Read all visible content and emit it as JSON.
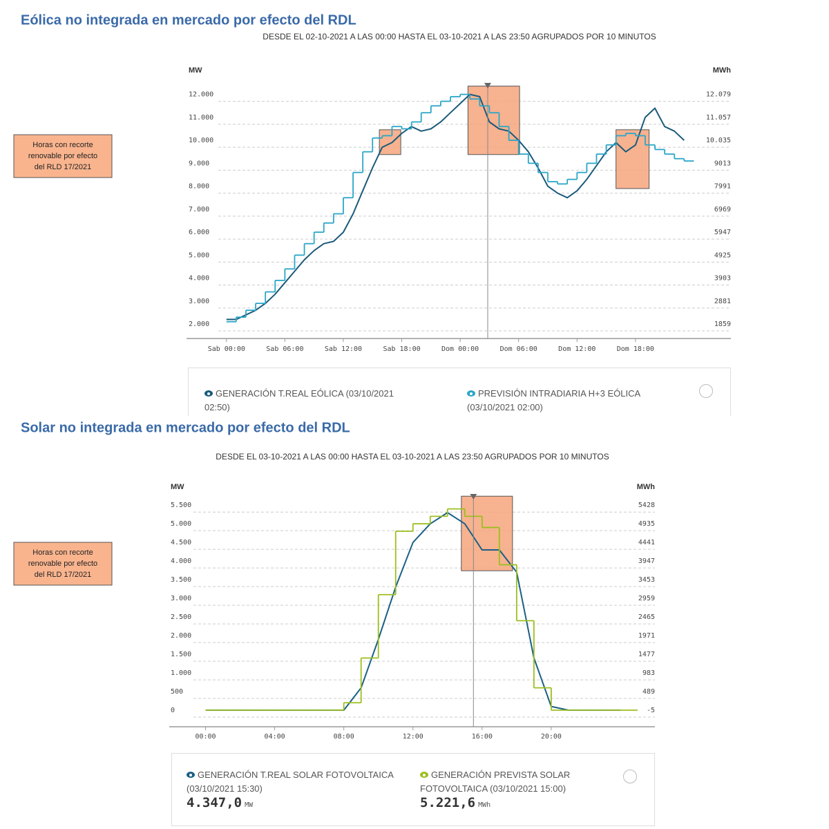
{
  "chart_data": [
    {
      "type": "line",
      "heading": "Eólica no integrada en mercado por efecto del RDL",
      "subtitle": "DESDE EL 02-10-2021 A LAS 00:00 HASTA EL 03-10-2021 A LAS 23:50 AGRUPADOS POR 10 MINUTOS",
      "ylabel": "MW",
      "y2label": "MWh",
      "annotation": [
        "Horas con recorte",
        "renovable por efecto",
        "del RLD 17/2021"
      ],
      "x": [
        0,
        1,
        2,
        3,
        4,
        5,
        6,
        7,
        8,
        9,
        10,
        11,
        12,
        13,
        14,
        15,
        16,
        17,
        18,
        19,
        20,
        21,
        22,
        23,
        24,
        25,
        26,
        27,
        28,
        29,
        30,
        31,
        32,
        33,
        34,
        35,
        36,
        37,
        38,
        39,
        40,
        41,
        42,
        43,
        44,
        45,
        46,
        47
      ],
      "xlim": [
        -4.1,
        51.8
      ],
      "xticks": [
        {
          "value": 0,
          "label": "Sab 00:00"
        },
        {
          "value": 6,
          "label": "Sab 06:00"
        },
        {
          "value": 12,
          "label": "Sab 12:00"
        },
        {
          "value": 18,
          "label": "Sab 18:00"
        },
        {
          "value": 24,
          "label": "Dom 00:00"
        },
        {
          "value": 30,
          "label": "Dom 06:00"
        },
        {
          "value": 36,
          "label": "Dom 12:00"
        },
        {
          "value": 42,
          "label": "Dom 18:00"
        }
      ],
      "ylim": [
        1370,
        12500
      ],
      "yticks": [
        {
          "value": 2000,
          "label": "2.000"
        },
        {
          "value": 3000,
          "label": "3.000"
        },
        {
          "value": 4000,
          "label": "4.000"
        },
        {
          "value": 5000,
          "label": "5.000"
        },
        {
          "value": 6000,
          "label": "6.000"
        },
        {
          "value": 7000,
          "label": "7.000"
        },
        {
          "value": 8000,
          "label": "8.000"
        },
        {
          "value": 9000,
          "label": "9.000"
        },
        {
          "value": 10000,
          "label": "10.000"
        },
        {
          "value": 11000,
          "label": "11.000"
        },
        {
          "value": 12000,
          "label": "12.000"
        }
      ],
      "y2lim": [
        1215,
        12590
      ],
      "y2ticks": [
        1859,
        2881,
        3903,
        4925,
        5947,
        6969,
        7991,
        9013,
        {
          "value": 10035,
          "label": "10.035"
        },
        {
          "value": 11057,
          "label": "11.057"
        },
        {
          "value": 12079,
          "label": "12.079"
        }
      ],
      "grid": true,
      "cursor": 26.83,
      "highlights": [
        {
          "x": [
            15.7,
            17.9
          ],
          "y": [
            9380,
            10460
          ]
        },
        {
          "x": [
            24.8,
            30.1
          ],
          "y": [
            9380,
            12360
          ]
        },
        {
          "x": [
            40,
            43.4
          ],
          "y": [
            7900,
            10460
          ]
        }
      ],
      "series": [
        {
          "name": "GENERACIÓN T.REAL EÓLICA",
          "legend_date": "(03/10/2021 02:50)",
          "color": "#1a5a7a",
          "values": [
            2200,
            2200,
            2400,
            2600,
            2900,
            3300,
            3800,
            4300,
            4800,
            5200,
            5500,
            5600,
            6000,
            6800,
            7800,
            8800,
            9700,
            9900,
            10300,
            10600,
            10400,
            10500,
            10800,
            11200,
            11600,
            12000,
            11900,
            10800,
            10500,
            10400,
            10000,
            9500,
            8800,
            8000,
            7700,
            7500,
            7800,
            8300,
            8900,
            9500,
            9900,
            9500,
            9800,
            11000,
            11400,
            10600,
            10400,
            10000
          ]
        },
        {
          "name": "PREVISIÓN INTRADIARIA H+3 EÓLICA",
          "legend_date": "(03/10/2021 02:00)",
          "color": "#2aa6c8",
          "style": "step",
          "values": [
            2100,
            2300,
            2600,
            2900,
            3400,
            3900,
            4400,
            5000,
            5500,
            6000,
            6400,
            6800,
            7500,
            8600,
            9500,
            10100,
            10200,
            10600,
            10500,
            10800,
            11200,
            11500,
            11700,
            11900,
            12000,
            11800,
            11500,
            11200,
            10600,
            10000,
            9400,
            9000,
            8600,
            8200,
            8100,
            8300,
            8600,
            9000,
            9400,
            9800,
            10200,
            10300,
            10200,
            9800,
            9600,
            9400,
            9200,
            9100
          ]
        }
      ]
    },
    {
      "type": "line",
      "heading": "Solar no integrada en mercado por efecto del RDL",
      "subtitle": "DESDE EL 03-10-2021 A LAS 00:00 HASTA EL 03-10-2021 A LAS 23:50 AGRUPADOS POR 10 MINUTOS",
      "ylabel": "MW",
      "y2label": "MWh",
      "annotation": [
        "Horas con recorte",
        "renovable por efecto",
        "del RLD 17/2021"
      ],
      "x": [
        0,
        1,
        2,
        3,
        4,
        5,
        6,
        7,
        8,
        9,
        10,
        11,
        12,
        13,
        14,
        15,
        16,
        17,
        18,
        19,
        20,
        21,
        22,
        23,
        24
      ],
      "xlim": [
        -2.1,
        26
      ],
      "xticks": [
        {
          "value": 0,
          "label": "00:00"
        },
        {
          "value": 4,
          "label": "04:00"
        },
        {
          "value": 8,
          "label": "08:00"
        },
        {
          "value": 12,
          "label": "12:00"
        },
        {
          "value": 16,
          "label": "16:00"
        },
        {
          "value": 20,
          "label": "20:00"
        }
      ],
      "ylim": [
        -444,
        5800
      ],
      "yticks": [
        0,
        500,
        {
          "value": 1000,
          "label": "1.000"
        },
        {
          "value": 1500,
          "label": "1.500"
        },
        {
          "value": 2000,
          "label": "2.000"
        },
        {
          "value": 2500,
          "label": "2.500"
        },
        {
          "value": 3000,
          "label": "3.000"
        },
        {
          "value": 3500,
          "label": "3.500"
        },
        {
          "value": 4000,
          "label": "4.000"
        },
        {
          "value": 4500,
          "label": "4.500"
        },
        {
          "value": 5000,
          "label": "5.000"
        },
        {
          "value": 5500,
          "label": "5.500"
        }
      ],
      "y2lim": [
        -444,
        5724
      ],
      "y2ticks": [
        -5,
        489,
        983,
        1477,
        1971,
        2465,
        2959,
        3453,
        3947,
        4441,
        4935,
        5428
      ],
      "grid": true,
      "cursor": 15.5,
      "highlights": [
        {
          "x": [
            14.8,
            17.76
          ],
          "y": [
            3740,
            5740
          ]
        }
      ],
      "series": [
        {
          "name": "GENERACIÓN T.REAL SOLAR FOTOVOLTAICA",
          "legend_date": "(03/10/2021 15:30)",
          "legend_value": "4.347,0",
          "legend_unit": "MW",
          "color": "#1a5f85",
          "values": [
            0,
            0,
            0,
            0,
            0,
            0,
            0,
            0,
            0,
            600,
            1900,
            3300,
            4500,
            5000,
            5300,
            5000,
            4300,
            4300,
            3700,
            1400,
            100,
            0,
            0,
            0,
            0
          ]
        },
        {
          "name": "GENERACIÓN PREVISTA SOLAR FOTOVOLTAICA",
          "legend_date": "(03/10/2021 15:00)",
          "legend_value": "5.221,6",
          "legend_unit": "MWh",
          "color": "#9cbf1e",
          "style": "step",
          "values": [
            0,
            0,
            0,
            0,
            0,
            0,
            0,
            0,
            200,
            1400,
            3100,
            4800,
            5000,
            5200,
            5400,
            5200,
            4900,
            3900,
            2400,
            600,
            0,
            0,
            0,
            0,
            0
          ]
        }
      ]
    }
  ]
}
